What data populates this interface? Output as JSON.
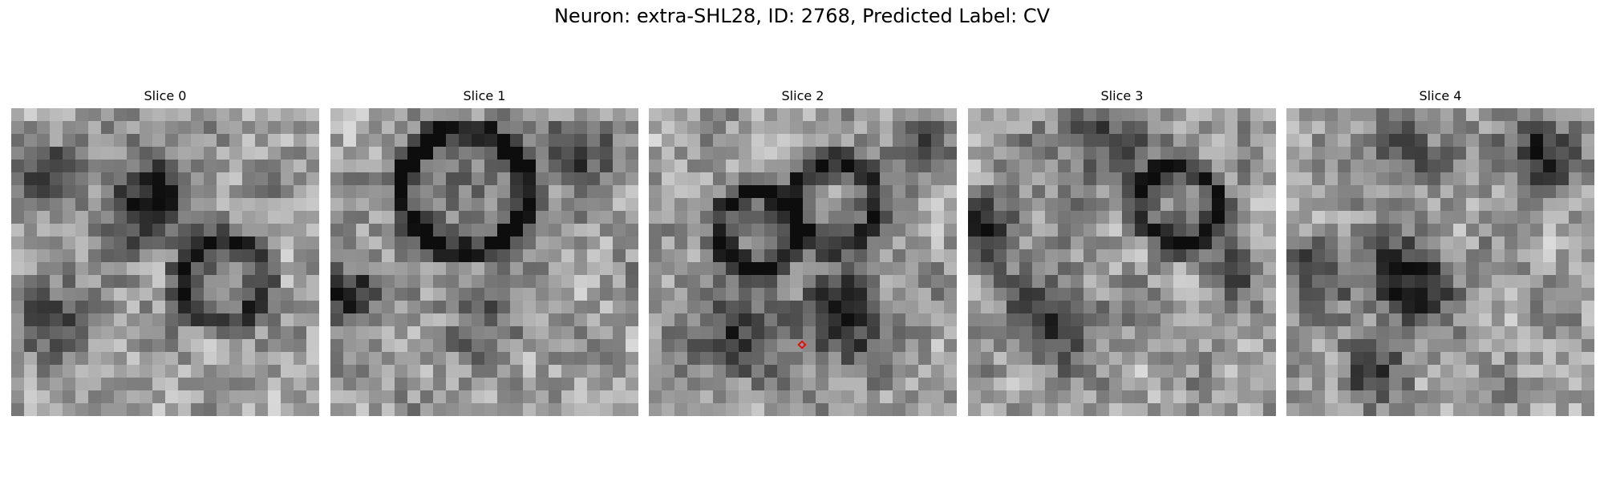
{
  "figure": {
    "title": "Neuron: extra-SHL28, ID: 2768, Predicted Label: CV"
  },
  "slices": [
    {
      "label": "Slice 0"
    },
    {
      "label": "Slice 1"
    },
    {
      "label": "Slice 2"
    },
    {
      "label": "Slice 3"
    },
    {
      "label": "Slice 4"
    }
  ],
  "marker": {
    "slice_index": 2,
    "color": "#e01010",
    "shape": "diamond"
  },
  "colors": {
    "background": "#ffffff",
    "text": "#000000"
  }
}
